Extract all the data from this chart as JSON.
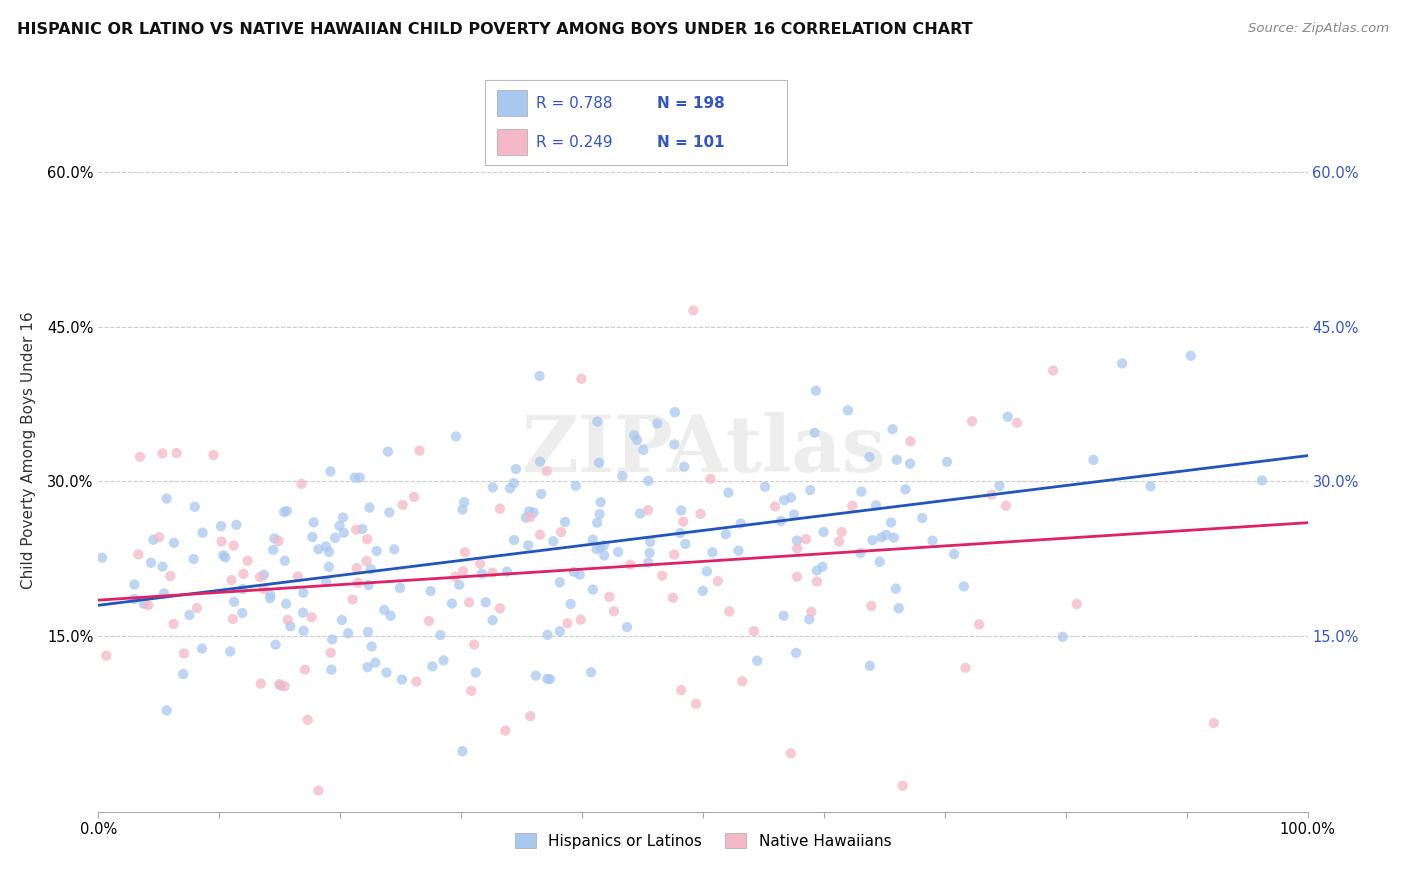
{
  "title": "HISPANIC OR LATINO VS NATIVE HAWAIIAN CHILD POVERTY AMONG BOYS UNDER 16 CORRELATION CHART",
  "source": "Source: ZipAtlas.com",
  "ylabel": "Child Poverty Among Boys Under 16",
  "xlim": [
    0,
    100
  ],
  "ylim": [
    -2,
    68
  ],
  "yticks": [
    0,
    15,
    30,
    45,
    60
  ],
  "ytick_labels_left": [
    "",
    "15.0%",
    "30.0%",
    "45.0%",
    "60.0%"
  ],
  "ytick_labels_right": [
    "",
    "15.0%",
    "30.0%",
    "45.0%",
    "60.0%"
  ],
  "xtick_labels": [
    "0.0%",
    "",
    "",
    "",
    "",
    "",
    "",
    "",
    "",
    "",
    "100.0%"
  ],
  "xtick_positions": [
    0,
    10,
    20,
    30,
    40,
    50,
    60,
    70,
    80,
    90,
    100
  ],
  "legend_label1": "Hispanics or Latinos",
  "legend_label2": "Native Hawaiians",
  "blue_scatter_color": "#A8C8F0",
  "pink_scatter_color": "#F5B8C8",
  "blue_line_color": "#2255BB",
  "pink_line_color": "#DD2266",
  "legend_text_color": "#3355CC",
  "watermark_text": "ZIPAtlas",
  "background_color": "#FFFFFF",
  "grid_color": "#CCCCCC",
  "r1": 0.788,
  "n1": 198,
  "r2": 0.249,
  "n2": 101,
  "blue_line_start_y": 18.0,
  "blue_line_end_y": 32.5,
  "pink_line_start_y": 18.5,
  "pink_line_end_y": 26.0
}
